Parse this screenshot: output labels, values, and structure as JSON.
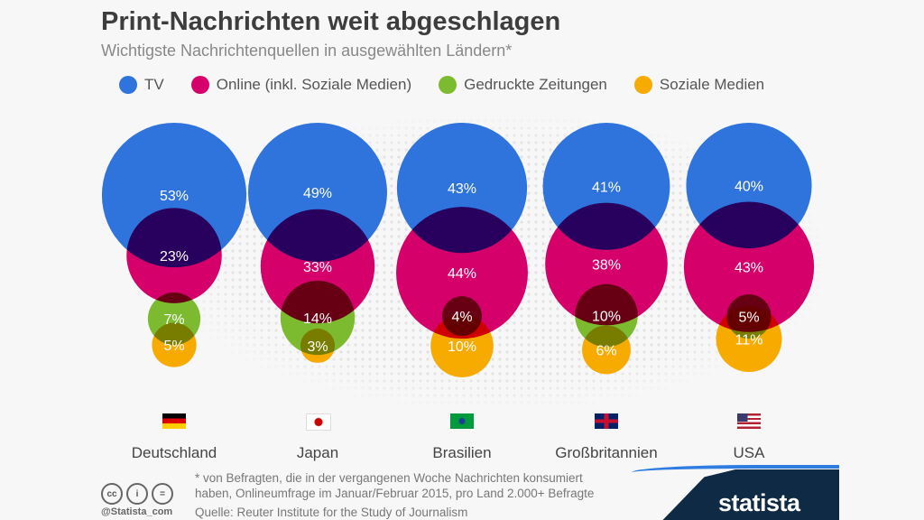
{
  "title": "Print-Nachrichten weit abgeschlagen",
  "subtitle": "Wichtigste Nachrichtenquellen in ausgewählten Ländern*",
  "colors": {
    "tv": "#2f74dd",
    "online": "#d6006b",
    "print": "#7cba2f",
    "social": "#f7ab00"
  },
  "chart_data": {
    "type": "bubble",
    "title": "Print-Nachrichten weit abgeschlagen",
    "categories": [
      "Deutschland",
      "Japan",
      "Brasilien",
      "Großbritannien",
      "USA"
    ],
    "unit": "%",
    "legend_position": "top",
    "series": [
      {
        "name": "TV",
        "key": "tv",
        "values": [
          53,
          49,
          43,
          41,
          40
        ]
      },
      {
        "name": "Online (inkl. Soziale Medien)",
        "key": "online",
        "values": [
          23,
          33,
          44,
          38,
          43
        ]
      },
      {
        "name": "Gedruckte Zeitungen",
        "key": "print",
        "values": [
          7,
          14,
          4,
          10,
          5
        ]
      },
      {
        "name": "Soziale Medien",
        "key": "social",
        "values": [
          5,
          3,
          10,
          6,
          11
        ]
      }
    ]
  },
  "flags": [
    "de",
    "jp",
    "br",
    "gb",
    "us"
  ],
  "footer": {
    "note_line1": "* von Befragten, die in der vergangenen Woche Nachrichten konsumiert",
    "note_line2": "haben, Onlineumfrage im Januar/Februar 2015, pro Land 2.000+ Befragte",
    "source": "Quelle: Reuter Institute for the Study of Journalism",
    "handle": "@Statista_com",
    "logo": "statista",
    "license_icons": [
      "cc",
      "by",
      "nd"
    ]
  }
}
